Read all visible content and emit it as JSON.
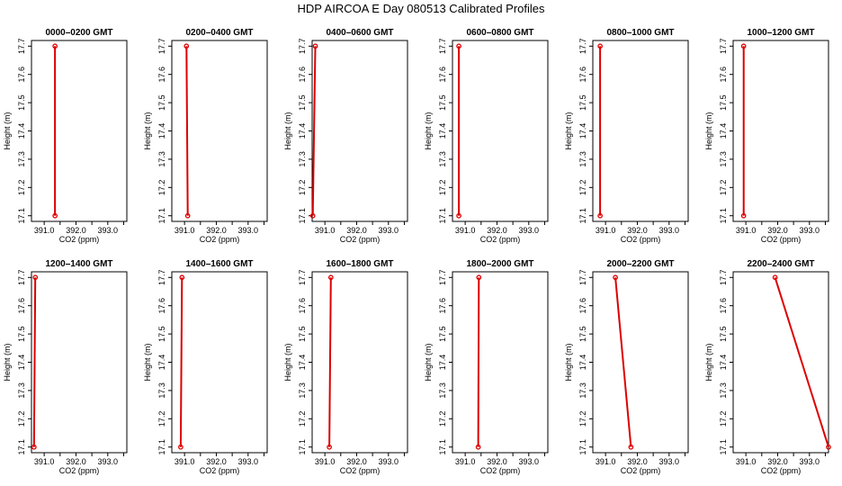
{
  "page": {
    "title": "HDP AIRCOA E  Day 080513  Calibrated Profiles"
  },
  "colors": {
    "trace": "#dd0000",
    "axis": "#000000",
    "background": "#ffffff"
  },
  "chart_data": [
    {
      "type": "line",
      "title": "0000–0200 GMT",
      "xlabel": "CO2 (ppm)",
      "ylabel": "Height (m)",
      "xlim": [
        390.6,
        393.6
      ],
      "ylim": [
        17.08,
        17.72
      ],
      "xticks": [
        "391.0",
        "392.0",
        "393.0"
      ],
      "yticks": [
        "17.1",
        "17.2",
        "17.3",
        "17.4",
        "17.5",
        "17.6",
        "17.7"
      ],
      "x": [
        391.34,
        391.34
      ],
      "y": [
        17.1,
        17.7
      ]
    },
    {
      "type": "line",
      "title": "0200–0400 GMT",
      "xlabel": "CO2 (ppm)",
      "ylabel": "Height (m)",
      "xlim": [
        390.6,
        393.6
      ],
      "ylim": [
        17.08,
        17.72
      ],
      "xticks": [
        "391.0",
        "392.0",
        "393.0"
      ],
      "yticks": [
        "17.1",
        "17.2",
        "17.3",
        "17.4",
        "17.5",
        "17.6",
        "17.7"
      ],
      "x": [
        391.1,
        391.06
      ],
      "y": [
        17.1,
        17.7
      ]
    },
    {
      "type": "line",
      "title": "0400–0600 GMT",
      "xlabel": "CO2 (ppm)",
      "ylabel": "Height (m)",
      "xlim": [
        390.6,
        393.6
      ],
      "ylim": [
        17.08,
        17.72
      ],
      "xticks": [
        "391.0",
        "392.0",
        "393.0"
      ],
      "yticks": [
        "17.1",
        "17.2",
        "17.3",
        "17.4",
        "17.5",
        "17.6",
        "17.7"
      ],
      "x": [
        390.62,
        390.7
      ],
      "y": [
        17.1,
        17.7
      ]
    },
    {
      "type": "line",
      "title": "0600–0800 GMT",
      "xlabel": "CO2 (ppm)",
      "ylabel": "Height (m)",
      "xlim": [
        390.6,
        393.6
      ],
      "ylim": [
        17.08,
        17.72
      ],
      "xticks": [
        "391.0",
        "392.0",
        "393.0"
      ],
      "yticks": [
        "17.1",
        "17.2",
        "17.3",
        "17.4",
        "17.5",
        "17.6",
        "17.7"
      ],
      "x": [
        390.8,
        390.8
      ],
      "y": [
        17.1,
        17.7
      ]
    },
    {
      "type": "line",
      "title": "0800–1000 GMT",
      "xlabel": "CO2 (ppm)",
      "ylabel": "Height (m)",
      "xlim": [
        390.6,
        393.6
      ],
      "ylim": [
        17.08,
        17.72
      ],
      "xticks": [
        "391.0",
        "392.0",
        "393.0"
      ],
      "yticks": [
        "17.1",
        "17.2",
        "17.3",
        "17.4",
        "17.5",
        "17.6",
        "17.7"
      ],
      "x": [
        390.83,
        390.83
      ],
      "y": [
        17.1,
        17.7
      ]
    },
    {
      "type": "line",
      "title": "1000–1200 GMT",
      "xlabel": "CO2 (ppm)",
      "ylabel": "Height (m)",
      "xlim": [
        390.6,
        393.6
      ],
      "ylim": [
        17.08,
        17.72
      ],
      "xticks": [
        "391.0",
        "392.0",
        "393.0"
      ],
      "yticks": [
        "17.1",
        "17.2",
        "17.3",
        "17.4",
        "17.5",
        "17.6",
        "17.7"
      ],
      "x": [
        390.93,
        390.93
      ],
      "y": [
        17.1,
        17.7
      ]
    },
    {
      "type": "line",
      "title": "1200–1400 GMT",
      "xlabel": "CO2 (ppm)",
      "ylabel": "Height (m)",
      "xlim": [
        390.6,
        393.6
      ],
      "ylim": [
        17.08,
        17.72
      ],
      "xticks": [
        "391.0",
        "392.0",
        "393.0"
      ],
      "yticks": [
        "17.1",
        "17.2",
        "17.3",
        "17.4",
        "17.5",
        "17.6",
        "17.7"
      ],
      "x": [
        390.68,
        390.72
      ],
      "y": [
        17.1,
        17.7
      ]
    },
    {
      "type": "line",
      "title": "1400–1600 GMT",
      "xlabel": "CO2 (ppm)",
      "ylabel": "Height (m)",
      "xlim": [
        390.6,
        393.6
      ],
      "ylim": [
        17.08,
        17.72
      ],
      "xticks": [
        "391.0",
        "392.0",
        "393.0"
      ],
      "yticks": [
        "17.1",
        "17.2",
        "17.3",
        "17.4",
        "17.5",
        "17.6",
        "17.7"
      ],
      "x": [
        390.88,
        390.92
      ],
      "y": [
        17.1,
        17.7
      ]
    },
    {
      "type": "line",
      "title": "1600–1800 GMT",
      "xlabel": "CO2 (ppm)",
      "ylabel": "Height (m)",
      "xlim": [
        390.6,
        393.6
      ],
      "ylim": [
        17.08,
        17.72
      ],
      "xticks": [
        "391.0",
        "392.0",
        "393.0"
      ],
      "yticks": [
        "17.1",
        "17.2",
        "17.3",
        "17.4",
        "17.5",
        "17.6",
        "17.7"
      ],
      "x": [
        391.14,
        391.19
      ],
      "y": [
        17.1,
        17.7
      ]
    },
    {
      "type": "line",
      "title": "1800–2000 GMT",
      "xlabel": "CO2 (ppm)",
      "ylabel": "Height (m)",
      "xlim": [
        390.6,
        393.6
      ],
      "ylim": [
        17.08,
        17.72
      ],
      "xticks": [
        "391.0",
        "392.0",
        "393.0"
      ],
      "yticks": [
        "17.1",
        "17.2",
        "17.3",
        "17.4",
        "17.5",
        "17.6",
        "17.7"
      ],
      "x": [
        391.41,
        391.43
      ],
      "y": [
        17.1,
        17.7
      ]
    },
    {
      "type": "line",
      "title": "2000–2200 GMT",
      "xlabel": "CO2 (ppm)",
      "ylabel": "Height (m)",
      "xlim": [
        390.6,
        393.6
      ],
      "ylim": [
        17.08,
        17.72
      ],
      "xticks": [
        "391.0",
        "392.0",
        "393.0"
      ],
      "yticks": [
        "17.1",
        "17.2",
        "17.3",
        "17.4",
        "17.5",
        "17.6",
        "17.7"
      ],
      "x": [
        391.8,
        391.31
      ],
      "y": [
        17.1,
        17.7
      ]
    },
    {
      "type": "line",
      "title": "2200–2400 GMT",
      "xlabel": "CO2 (ppm)",
      "ylabel": "Height (m)",
      "xlim": [
        390.6,
        393.6
      ],
      "ylim": [
        17.08,
        17.72
      ],
      "xticks": [
        "391.0",
        "392.0",
        "393.0"
      ],
      "yticks": [
        "17.1",
        "17.2",
        "17.3",
        "17.4",
        "17.5",
        "17.6",
        "17.7"
      ],
      "x": [
        393.6,
        391.92
      ],
      "y": [
        17.1,
        17.7
      ]
    }
  ]
}
